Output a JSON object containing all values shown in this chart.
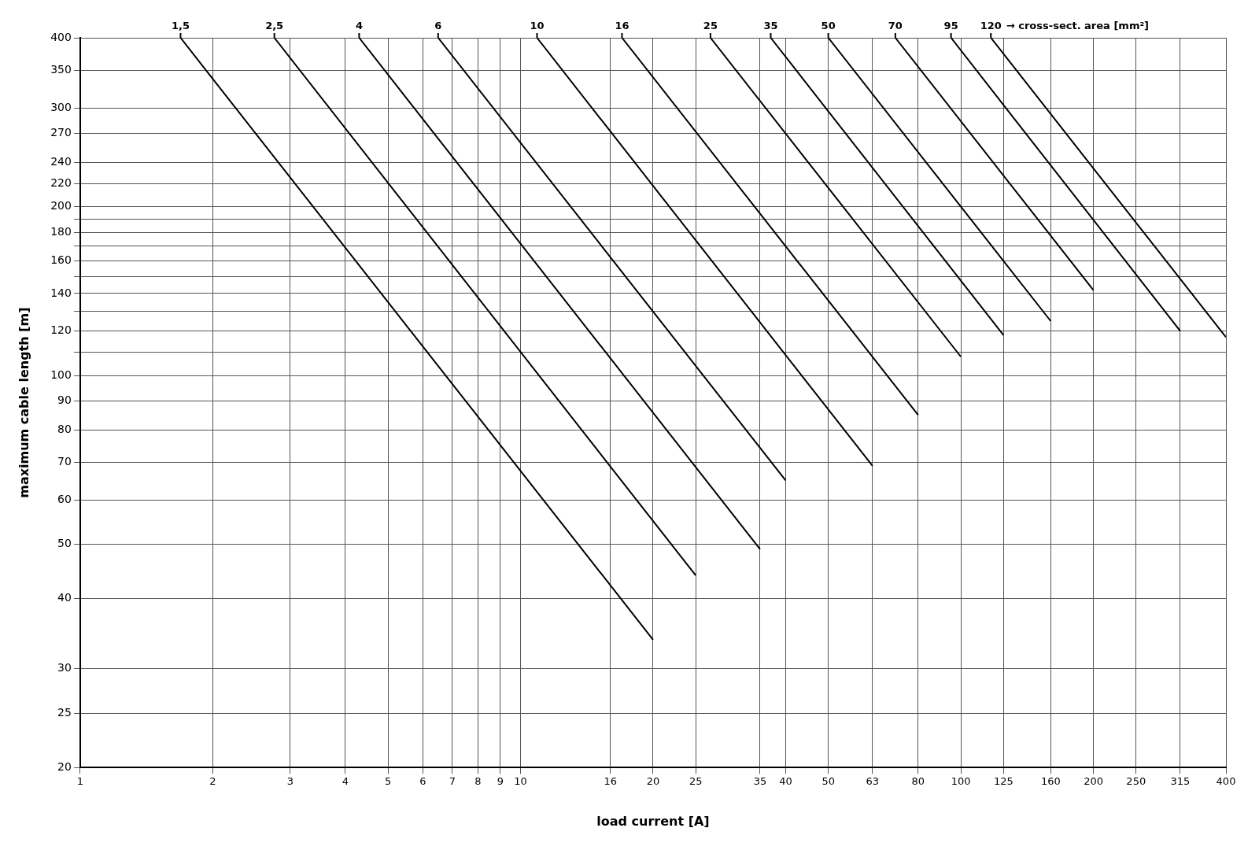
{
  "chart_data": {
    "type": "line",
    "xlabel": "load current [A]",
    "ylabel": "maximum cable length [m]",
    "log": "xy",
    "grid": true,
    "legend": false,
    "marker": "none",
    "line_style": "solid",
    "xlim": [
      1,
      400
    ],
    "ylim": [
      20,
      400
    ],
    "xticks": [
      1,
      2,
      3,
      4,
      5,
      6,
      7,
      8,
      9,
      10,
      16,
      20,
      25,
      35,
      40,
      50,
      63,
      80,
      100,
      125,
      160,
      200,
      250,
      315,
      400
    ],
    "yticks": [
      20,
      25,
      30,
      40,
      50,
      60,
      70,
      80,
      90,
      100,
      {
        "value": 110,
        "label": null
      },
      120,
      {
        "value": 130,
        "label": null
      },
      140,
      {
        "value": 150,
        "label": null
      },
      160,
      {
        "value": 170,
        "label": null
      },
      180,
      {
        "value": 190,
        "label": null
      },
      200,
      220,
      240,
      270,
      300,
      350,
      400
    ],
    "annotations": [
      "→ cross-sect. area [mm²]"
    ],
    "series": [
      {
        "name": "1,5",
        "color": "#000000",
        "x": [
          1.69,
          20
        ],
        "values": [
          400,
          33.8
        ]
      },
      {
        "name": "2,5",
        "color": "#000000",
        "x": [
          2.76,
          25
        ],
        "values": [
          400,
          44
        ]
      },
      {
        "name": "4",
        "color": "#000000",
        "x": [
          4.3,
          35
        ],
        "values": [
          400,
          49
        ]
      },
      {
        "name": "6",
        "color": "#000000",
        "x": [
          6.5,
          40
        ],
        "values": [
          400,
          65
        ]
      },
      {
        "name": "10",
        "color": "#000000",
        "x": [
          10.9,
          63
        ],
        "values": [
          400,
          69
        ]
      },
      {
        "name": "16",
        "color": "#000000",
        "x": [
          17,
          80
        ],
        "values": [
          400,
          85
        ]
      },
      {
        "name": "25",
        "color": "#000000",
        "x": [
          27,
          100
        ],
        "values": [
          400,
          108
        ]
      },
      {
        "name": "35",
        "color": "#000000",
        "x": [
          37,
          125
        ],
        "values": [
          400,
          118
        ]
      },
      {
        "name": "50",
        "color": "#000000",
        "x": [
          50,
          160
        ],
        "values": [
          400,
          125
        ]
      },
      {
        "name": "70",
        "color": "#000000",
        "x": [
          71,
          200
        ],
        "values": [
          400,
          142
        ]
      },
      {
        "name": "95",
        "color": "#000000",
        "x": [
          95,
          315
        ],
        "values": [
          400,
          120
        ]
      },
      {
        "name": "120",
        "color": "#000000",
        "x": [
          117,
          400
        ],
        "values": [
          400,
          117
        ]
      }
    ]
  }
}
